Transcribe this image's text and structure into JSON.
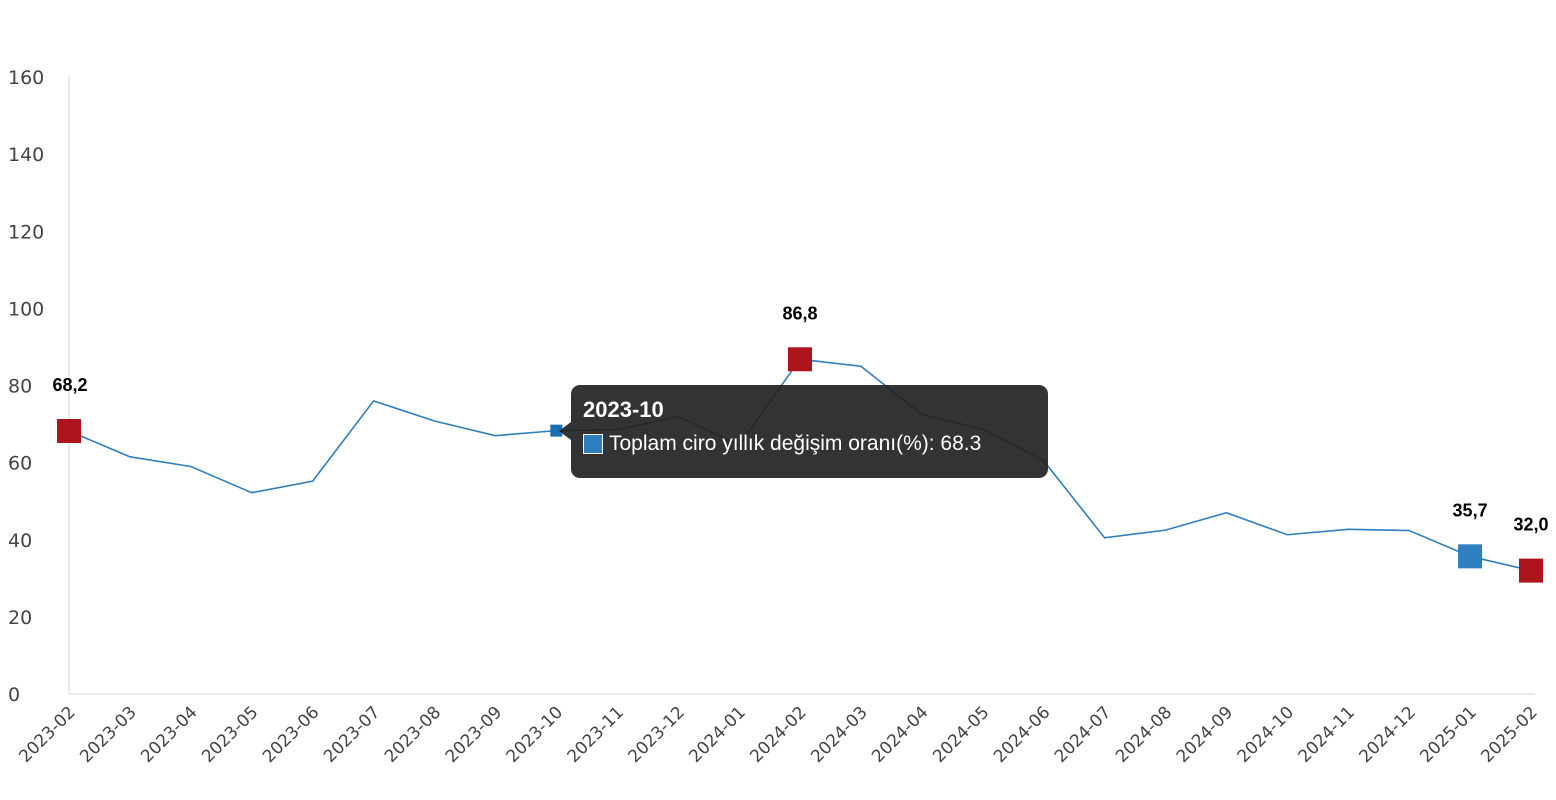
{
  "chart_data": {
    "type": "line",
    "categories": [
      "2023-02",
      "2023-03",
      "2023-04",
      "2023-05",
      "2023-06",
      "2023-07",
      "2023-08",
      "2023-09",
      "2023-10",
      "2023-11",
      "2023-12",
      "2024-01",
      "2024-02",
      "2024-03",
      "2024-04",
      "2024-05",
      "2024-06",
      "2024-07",
      "2024-08",
      "2024-09",
      "2024-10",
      "2024-11",
      "2024-12",
      "2025-01",
      "2025-02"
    ],
    "series": [
      {
        "name": "Toplam ciro yıllık değişim oranı(%)",
        "color": "#2e7fbf",
        "values": [
          68.2,
          61.5,
          59.0,
          52.2,
          55.2,
          76.0,
          70.8,
          67.0,
          68.3,
          68.5,
          72.0,
          64.5,
          86.8,
          85.0,
          72.5,
          68.7,
          60.5,
          40.5,
          42.5,
          47.0,
          41.3,
          42.7,
          42.4,
          35.7,
          32.0
        ]
      }
    ],
    "ylim": [
      0,
      160
    ],
    "yticks": [
      "0",
      "20",
      "40",
      "60",
      "80",
      "100",
      "120",
      "140",
      "160"
    ],
    "grid": false,
    "highlighted_points": [
      {
        "category": "2023-02",
        "label": "68,2",
        "color": "#ad141b"
      },
      {
        "category": "2024-02",
        "label": "86,8",
        "color": "#ad141b"
      },
      {
        "category": "2025-01",
        "label": "35,7",
        "color": "#2e7fbf"
      },
      {
        "category": "2025-02",
        "label": "32,0",
        "color": "#ad141b"
      }
    ],
    "hover_point": "2023-10"
  },
  "tooltip": {
    "title": "2023-10",
    "series_name": "Toplam ciro yıllık değişim oranı(%)",
    "value": "68.3",
    "text": "Toplam ciro yıllık değişim oranı(%): 68.3"
  }
}
